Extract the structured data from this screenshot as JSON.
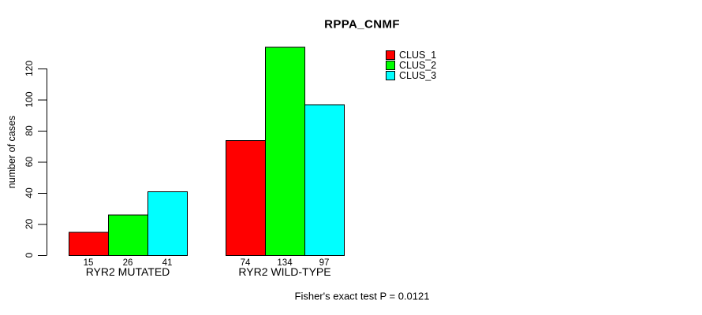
{
  "chart_data": {
    "type": "bar",
    "title": "RPPA_CNMF",
    "ylabel": "number of cases",
    "xlabel": "",
    "categories": [
      "RYR2 MUTATED",
      "RYR2 WILD-TYPE"
    ],
    "series": [
      {
        "name": "CLUS_1",
        "color": "#ff0000",
        "values": [
          15,
          74
        ]
      },
      {
        "name": "CLUS_2",
        "color": "#00ff00",
        "values": [
          26,
          134
        ]
      },
      {
        "name": "CLUS_3",
        "color": "#00ffff",
        "values": [
          41,
          97
        ]
      }
    ],
    "yticks": [
      0,
      20,
      40,
      60,
      80,
      100,
      120
    ],
    "ylim": [
      0,
      120
    ],
    "grid": false,
    "show_bar_value_labels": true,
    "legend_position": "top-right",
    "annotation": "Fisher's exact test P = 0.0121",
    "axis_color": "#000000",
    "text_color": "#000000",
    "background": "#ffffff"
  }
}
